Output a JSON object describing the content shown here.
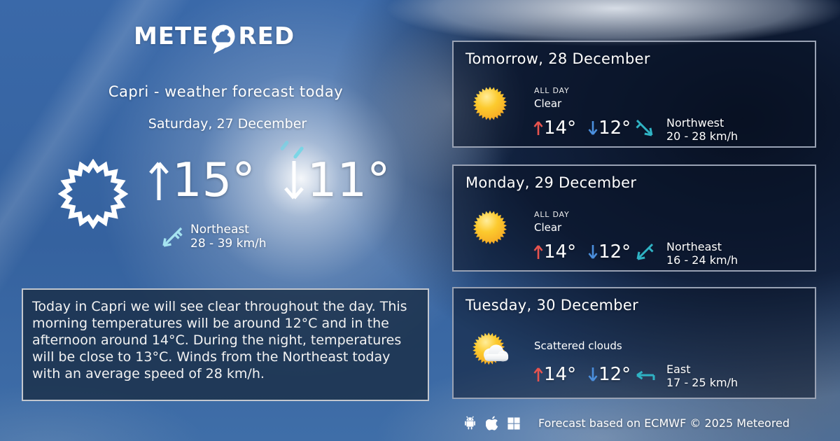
{
  "logo": {
    "left": "METE",
    "right": "RED",
    "bubble_icon": "cloud-speech-bubble"
  },
  "header": {
    "title": "Capri - weather forecast today",
    "date": "Saturday, 27 December"
  },
  "today": {
    "condition_icon": "sun-outline",
    "high": "15°",
    "low": "11°",
    "wind": {
      "direction": "Northeast",
      "speed": "28 - 39 km/h",
      "icon": "wind-from-northeast"
    }
  },
  "summary": {
    "text": "Today in Capri we will see clear throughout the day. This morning temperatures will be around 12°C and in the afternoon around 14°C. During the night, temperatures will be close to 13°C. Winds from the Northeast today with an average speed of 28 km/h."
  },
  "forecast_cards": [
    {
      "title": "Tomorrow, 28 December",
      "period": "ALL DAY",
      "condition": "Clear",
      "icon": "sun",
      "high": "14°",
      "low": "12°",
      "wind": {
        "direction": "Northwest",
        "speed": "20 - 28 km/h",
        "icon": "wind-from-northwest"
      }
    },
    {
      "title": "Monday, 29 December",
      "period": "ALL DAY",
      "condition": "Clear",
      "icon": "sun",
      "high": "14°",
      "low": "12°",
      "wind": {
        "direction": "Northeast",
        "speed": "16 - 24 km/h",
        "icon": "wind-from-northeast"
      }
    },
    {
      "title": "Tuesday, 30 December",
      "period": "",
      "condition": "Scattered clouds",
      "icon": "sun-cloud",
      "high": "14°",
      "low": "12°",
      "wind": {
        "direction": "East",
        "speed": "17 - 25 km/h",
        "icon": "wind-from-east"
      }
    }
  ],
  "footer": {
    "platforms": [
      "android",
      "apple",
      "windows"
    ],
    "credit": "Forecast based on ECMWF © 2025 Meteored"
  },
  "colors": {
    "sky_blue": "#3a69a9",
    "dark_cloud_navy": "#0a1326",
    "card_border": "#99a2b4",
    "summary_border": "#c3c7ce",
    "temp_high_arrow": "#e8534e",
    "temp_low_arrow": "#4b8fdd",
    "wind_icon_teal": "#2fb3c4",
    "wind_icon_light": "#a5e3f0",
    "sun_yellow": "#fcca2e",
    "sun_orange": "#f5a623"
  }
}
